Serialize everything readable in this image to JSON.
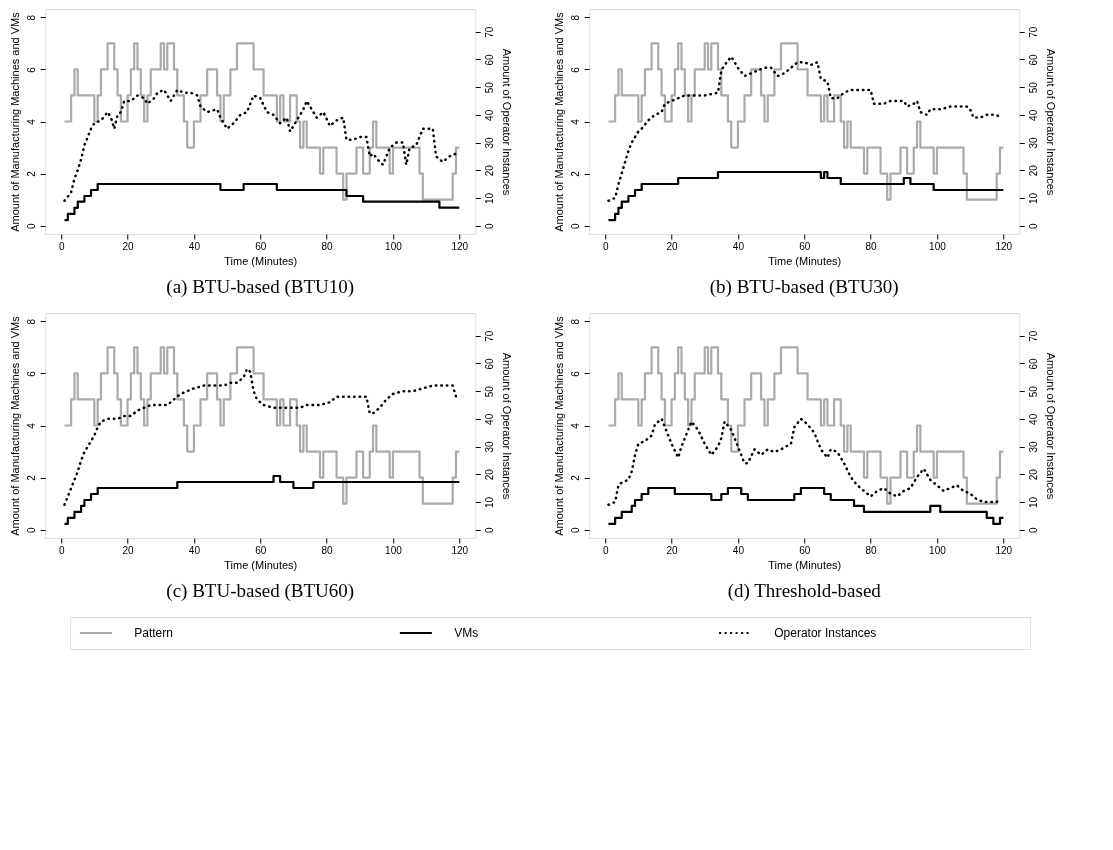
{
  "chart_data": [
    {
      "type": "line",
      "title": "(a) BTU-based (BTU10)",
      "xlabel": "Time (Minutes)",
      "ylabel": "Amount of Manufacturing Machines and VMs",
      "y2label": "Amount of Operator Instances",
      "xlim": [
        -4.8,
        124.8
      ],
      "xticks": [
        0,
        20,
        40,
        60,
        80,
        100,
        120
      ],
      "ylim": [
        -0.32,
        8.32
      ],
      "yticks": [
        0,
        2,
        4,
        6,
        8
      ],
      "y2lim": [
        -3,
        78.2
      ],
      "y2ticks": [
        0,
        10,
        20,
        30,
        40,
        50,
        60,
        70
      ],
      "series": [
        {
          "type": "step",
          "color": "#aaaaaa",
          "x": [
            1,
            3,
            4,
            5,
            10,
            11,
            12,
            14,
            16,
            17,
            18,
            20,
            21,
            22,
            23,
            24,
            25,
            26,
            27,
            30,
            31,
            32,
            34,
            35,
            37,
            38,
            40,
            42,
            44,
            47,
            48,
            49,
            51,
            53,
            58,
            61,
            65,
            66,
            67,
            69,
            71,
            72,
            73,
            74,
            78,
            79,
            83,
            85,
            86,
            89,
            91,
            93,
            94,
            95,
            99,
            100,
            108,
            109,
            118,
            119,
            120
          ],
          "values": [
            4,
            5,
            6,
            5,
            4,
            5,
            6,
            7,
            6,
            5,
            4,
            5,
            6,
            7,
            6,
            5,
            4,
            5,
            6,
            7,
            6,
            7,
            6,
            5,
            4,
            3,
            4,
            5,
            6,
            5,
            4,
            5,
            6,
            7,
            6,
            5,
            4,
            5,
            4,
            5,
            4,
            3,
            4,
            3,
            2,
            3,
            2,
            1,
            2,
            3,
            2,
            3,
            4,
            3,
            2,
            3,
            2,
            1,
            2,
            3,
            3
          ]
        },
        {
          "type": "step",
          "color": "#000000",
          "x": [
            1,
            2,
            4,
            5,
            7,
            9,
            11,
            48,
            55,
            65,
            86,
            91,
            114,
            120
          ],
          "values": [
            0.21,
            0.45,
            0.68,
            0.92,
            1.14,
            1.37,
            1.6,
            1.37,
            1.6,
            1.37,
            1.14,
            0.92,
            0.69,
            0.69
          ]
        },
        {
          "type": "line",
          "color": "#000000",
          "axis": "y2",
          "line_style": "dotted",
          "x": [
            1,
            3,
            4,
            5,
            6,
            7,
            8,
            9,
            10,
            12,
            14,
            15,
            16,
            17,
            18,
            19,
            21,
            23,
            25,
            26,
            28,
            29,
            31,
            33,
            35,
            37,
            39,
            41,
            42,
            44,
            47,
            48,
            50,
            52,
            54,
            56,
            58,
            60,
            62,
            64,
            66,
            68,
            69,
            71,
            73,
            74,
            75,
            77,
            79,
            81,
            83,
            85,
            86,
            88,
            90,
            92,
            93,
            94,
            96,
            97,
            99,
            101,
            103,
            104,
            105,
            107,
            109,
            110,
            112,
            113,
            115,
            117,
            119
          ],
          "values": [
            9,
            12,
            17,
            20,
            24,
            29,
            32,
            35,
            37,
            38,
            41,
            39,
            35,
            40,
            41,
            45,
            45,
            47,
            46,
            44,
            46,
            48,
            49,
            45,
            49,
            48,
            48,
            47,
            43,
            41,
            42,
            39,
            35,
            37,
            40,
            41,
            47,
            46,
            41,
            40,
            37,
            39,
            34,
            38,
            42,
            45,
            43,
            39,
            41,
            36,
            38,
            39,
            31,
            31,
            32,
            32,
            25,
            26,
            23,
            22,
            28,
            30,
            30,
            22,
            28,
            29,
            35,
            35,
            35,
            25,
            23,
            25,
            26
          ]
        }
      ]
    },
    {
      "type": "line",
      "title": "(b) BTU-based (BTU30)",
      "xlabel": "Time (Minutes)",
      "ylabel": "Amount of Manufacturing Machines and VMs",
      "y2label": "Amount of Operator Instances",
      "xlim": [
        -4.8,
        124.8
      ],
      "xticks": [
        0,
        20,
        40,
        60,
        80,
        100,
        120
      ],
      "ylim": [
        -0.32,
        8.32
      ],
      "yticks": [
        0,
        2,
        4,
        6,
        8
      ],
      "y2lim": [
        -3,
        78.2
      ],
      "y2ticks": [
        0,
        10,
        20,
        30,
        40,
        50,
        60,
        70
      ],
      "series": [
        {
          "type": "step",
          "color": "#aaaaaa",
          "x": [
            1,
            3,
            4,
            5,
            10,
            11,
            12,
            14,
            16,
            17,
            18,
            20,
            21,
            22,
            23,
            24,
            25,
            26,
            27,
            30,
            31,
            32,
            34,
            35,
            37,
            38,
            40,
            42,
            44,
            47,
            48,
            49,
            51,
            53,
            58,
            61,
            65,
            66,
            67,
            69,
            71,
            72,
            73,
            74,
            78,
            79,
            83,
            85,
            86,
            89,
            91,
            93,
            94,
            95,
            99,
            100,
            108,
            109,
            118,
            119,
            120
          ],
          "values": [
            4,
            5,
            6,
            5,
            4,
            5,
            6,
            7,
            6,
            5,
            4,
            5,
            6,
            7,
            6,
            5,
            4,
            5,
            6,
            7,
            6,
            7,
            6,
            5,
            4,
            3,
            4,
            5,
            6,
            5,
            4,
            5,
            6,
            7,
            6,
            5,
            4,
            5,
            4,
            5,
            4,
            3,
            4,
            3,
            2,
            3,
            2,
            1,
            2,
            3,
            2,
            3,
            4,
            3,
            2,
            3,
            2,
            1,
            2,
            3,
            3
          ]
        },
        {
          "type": "step",
          "color": "#000000",
          "x": [
            1,
            3,
            4,
            5,
            7,
            9,
            11,
            22,
            34,
            65,
            66,
            67,
            71,
            90,
            92,
            99,
            120
          ],
          "values": [
            0.21,
            0.45,
            0.68,
            0.92,
            1.14,
            1.37,
            1.6,
            1.83,
            2.06,
            1.83,
            2.06,
            1.83,
            1.6,
            1.83,
            1.6,
            1.37,
            1.37
          ]
        },
        {
          "type": "line",
          "color": "#000000",
          "axis": "y2",
          "line_style": "dotted",
          "x": [
            1,
            3,
            4,
            5,
            6,
            7,
            8,
            9,
            10,
            11,
            13,
            15,
            17,
            18,
            20,
            22,
            24,
            27,
            30,
            34,
            35,
            36,
            38,
            40,
            42,
            44,
            46,
            48,
            50,
            52,
            54,
            56,
            58,
            60,
            62,
            64,
            65,
            67,
            68,
            70,
            72,
            74,
            77,
            80,
            81,
            84,
            86,
            88,
            90,
            91,
            93,
            94,
            95,
            97,
            98,
            101,
            104,
            106,
            109,
            110,
            111,
            113,
            115,
            118,
            119
          ],
          "values": [
            9,
            10,
            15,
            19,
            23,
            27,
            30,
            32,
            34,
            35,
            38,
            40,
            41,
            44,
            45,
            46,
            47,
            47,
            47,
            48,
            56,
            58,
            61,
            57,
            54,
            55,
            56,
            57,
            57,
            54,
            55,
            57,
            59,
            59,
            58,
            59,
            53,
            52,
            46,
            46,
            48,
            49,
            49,
            49,
            44,
            44,
            45,
            45,
            45,
            43,
            44,
            45,
            41,
            40,
            42,
            42,
            43,
            43,
            43,
            42,
            39,
            39,
            40,
            40,
            39
          ]
        }
      ]
    },
    {
      "type": "line",
      "title": "(c) BTU-based (BTU60)",
      "xlabel": "Time (Minutes)",
      "ylabel": "Amount of Manufacturing Machines and VMs",
      "y2label": "Amount of Operator Instances",
      "xlim": [
        -4.8,
        124.8
      ],
      "xticks": [
        0,
        20,
        40,
        60,
        80,
        100,
        120
      ],
      "ylim": [
        -0.32,
        8.32
      ],
      "yticks": [
        0,
        2,
        4,
        6,
        8
      ],
      "y2lim": [
        -3,
        78.2
      ],
      "y2ticks": [
        0,
        10,
        20,
        30,
        40,
        50,
        60,
        70
      ],
      "series": [
        {
          "type": "step",
          "color": "#aaaaaa",
          "x": [
            1,
            3,
            4,
            5,
            10,
            11,
            12,
            14,
            16,
            17,
            18,
            20,
            21,
            22,
            23,
            24,
            25,
            26,
            27,
            30,
            31,
            32,
            34,
            35,
            37,
            38,
            40,
            42,
            44,
            47,
            48,
            49,
            51,
            53,
            58,
            61,
            65,
            66,
            67,
            69,
            71,
            72,
            73,
            74,
            78,
            79,
            83,
            85,
            86,
            89,
            91,
            93,
            94,
            95,
            99,
            100,
            108,
            109,
            118,
            119,
            120
          ],
          "values": [
            4,
            5,
            6,
            5,
            4,
            5,
            6,
            7,
            6,
            5,
            4,
            5,
            6,
            7,
            6,
            5,
            4,
            5,
            6,
            7,
            6,
            7,
            6,
            5,
            4,
            3,
            4,
            5,
            6,
            5,
            4,
            5,
            6,
            7,
            6,
            5,
            4,
            5,
            4,
            5,
            4,
            3,
            4,
            3,
            2,
            3,
            2,
            1,
            2,
            3,
            2,
            3,
            4,
            3,
            2,
            3,
            2,
            1,
            2,
            3,
            3
          ]
        },
        {
          "type": "step",
          "color": "#000000",
          "x": [
            1,
            2,
            4,
            6,
            7,
            9,
            11,
            35,
            64,
            66,
            70,
            76,
            120
          ],
          "values": [
            0.22,
            0.45,
            0.68,
            0.91,
            1.14,
            1.37,
            1.6,
            1.83,
            2.06,
            1.83,
            1.6,
            1.83,
            1.83
          ]
        },
        {
          "type": "line",
          "color": "#000000",
          "axis": "y2",
          "line_style": "dotted",
          "x": [
            1,
            2,
            3,
            4,
            5,
            6,
            7,
            8,
            9,
            10,
            11,
            12,
            14,
            17,
            19,
            21,
            23,
            25,
            27,
            30,
            32,
            34,
            36,
            38,
            40,
            43,
            46,
            49,
            51,
            53,
            55,
            56,
            57,
            58,
            59,
            61,
            64,
            67,
            70,
            72,
            74,
            78,
            81,
            83,
            86,
            90,
            92,
            93,
            94,
            96,
            98,
            100,
            103,
            106,
            109,
            112,
            115,
            118,
            119
          ],
          "values": [
            9,
            12,
            15,
            18,
            21,
            25,
            28,
            30,
            32,
            34,
            37,
            39,
            40,
            40,
            41,
            41,
            43,
            44,
            45,
            45,
            45,
            47,
            49,
            50,
            51,
            52,
            52,
            52,
            53,
            53,
            55,
            58,
            57,
            50,
            47,
            45,
            44,
            44,
            44,
            44,
            45,
            45,
            46,
            48,
            48,
            48,
            48,
            42,
            42,
            44,
            47,
            49,
            50,
            50,
            51,
            52,
            52,
            52,
            48
          ]
        }
      ]
    },
    {
      "type": "line",
      "title": "(d) Threshold-based",
      "xlabel": "Time (Minutes)",
      "ylabel": "Amount of Manufacturing Machines and VMs",
      "y2label": "Amount of Operator Instances",
      "xlim": [
        -4.8,
        124.8
      ],
      "xticks": [
        0,
        20,
        40,
        60,
        80,
        100,
        120
      ],
      "ylim": [
        -0.32,
        8.32
      ],
      "yticks": [
        0,
        2,
        4,
        6,
        8
      ],
      "y2lim": [
        -3,
        78.2
      ],
      "y2ticks": [
        0,
        10,
        20,
        30,
        40,
        50,
        60,
        70
      ],
      "legend": "bottom",
      "series": [
        {
          "name": "Pattern",
          "type": "step",
          "color": "#aaaaaa",
          "x": [
            1,
            3,
            4,
            5,
            10,
            11,
            12,
            14,
            16,
            17,
            18,
            20,
            21,
            22,
            23,
            24,
            25,
            26,
            27,
            30,
            31,
            32,
            34,
            35,
            37,
            38,
            40,
            42,
            44,
            47,
            48,
            49,
            51,
            53,
            58,
            61,
            65,
            66,
            67,
            69,
            71,
            72,
            73,
            74,
            78,
            79,
            83,
            85,
            86,
            89,
            91,
            93,
            94,
            95,
            99,
            100,
            108,
            109,
            118,
            119,
            120
          ],
          "values": [
            4,
            5,
            6,
            5,
            4,
            5,
            6,
            7,
            6,
            5,
            4,
            5,
            6,
            7,
            6,
            5,
            4,
            5,
            6,
            7,
            6,
            7,
            6,
            5,
            4,
            3,
            4,
            5,
            6,
            5,
            4,
            5,
            6,
            7,
            6,
            5,
            4,
            5,
            4,
            5,
            4,
            3,
            4,
            3,
            2,
            3,
            2,
            1,
            2,
            3,
            2,
            3,
            4,
            3,
            2,
            3,
            2,
            1,
            2,
            3,
            3
          ]
        },
        {
          "name": "VMs",
          "type": "step",
          "color": "#000000",
          "x": [
            1,
            3,
            5,
            8,
            9,
            11,
            13,
            21,
            32,
            35,
            37,
            41,
            43,
            57,
            59,
            66,
            68,
            75,
            78,
            98,
            101,
            115,
            117,
            119,
            120
          ],
          "values": [
            0.22,
            0.45,
            0.68,
            0.91,
            1.14,
            1.37,
            1.6,
            1.37,
            1.14,
            1.37,
            1.6,
            1.37,
            1.14,
            1.37,
            1.6,
            1.37,
            1.14,
            0.91,
            0.68,
            0.91,
            0.68,
            0.45,
            0.22,
            0.45,
            0.45
          ]
        },
        {
          "name": "Operator Instances",
          "type": "line",
          "color": "#000000",
          "axis": "y2",
          "line_style": "dotted",
          "x": [
            1,
            3,
            4,
            5,
            7,
            8,
            9,
            10,
            12,
            14,
            15,
            17,
            18,
            20,
            22,
            23,
            25,
            26,
            28,
            30,
            32,
            34,
            35,
            36,
            38,
            40,
            42,
            43,
            45,
            47,
            49,
            51,
            53,
            56,
            57,
            59,
            61,
            63,
            65,
            67,
            68,
            70,
            72,
            74,
            76,
            78,
            80,
            82,
            84,
            86,
            88,
            90,
            92,
            94,
            96,
            98,
            100,
            102,
            104,
            106,
            108,
            110,
            112,
            114,
            116,
            118,
            119
          ],
          "values": [
            9,
            10,
            16,
            17,
            18,
            21,
            27,
            31,
            32,
            34,
            38,
            40,
            37,
            31,
            26,
            30,
            36,
            39,
            36,
            31,
            27,
            30,
            33,
            39,
            36,
            30,
            24,
            24,
            29,
            27,
            29,
            28,
            29,
            31,
            37,
            40,
            38,
            35,
            29,
            26,
            29,
            28,
            24,
            19,
            16,
            14,
            12,
            14,
            15,
            13,
            12,
            14,
            15,
            19,
            22,
            18,
            16,
            14,
            15,
            16,
            14,
            13,
            11,
            10,
            10,
            10,
            11
          ]
        }
      ]
    }
  ]
}
